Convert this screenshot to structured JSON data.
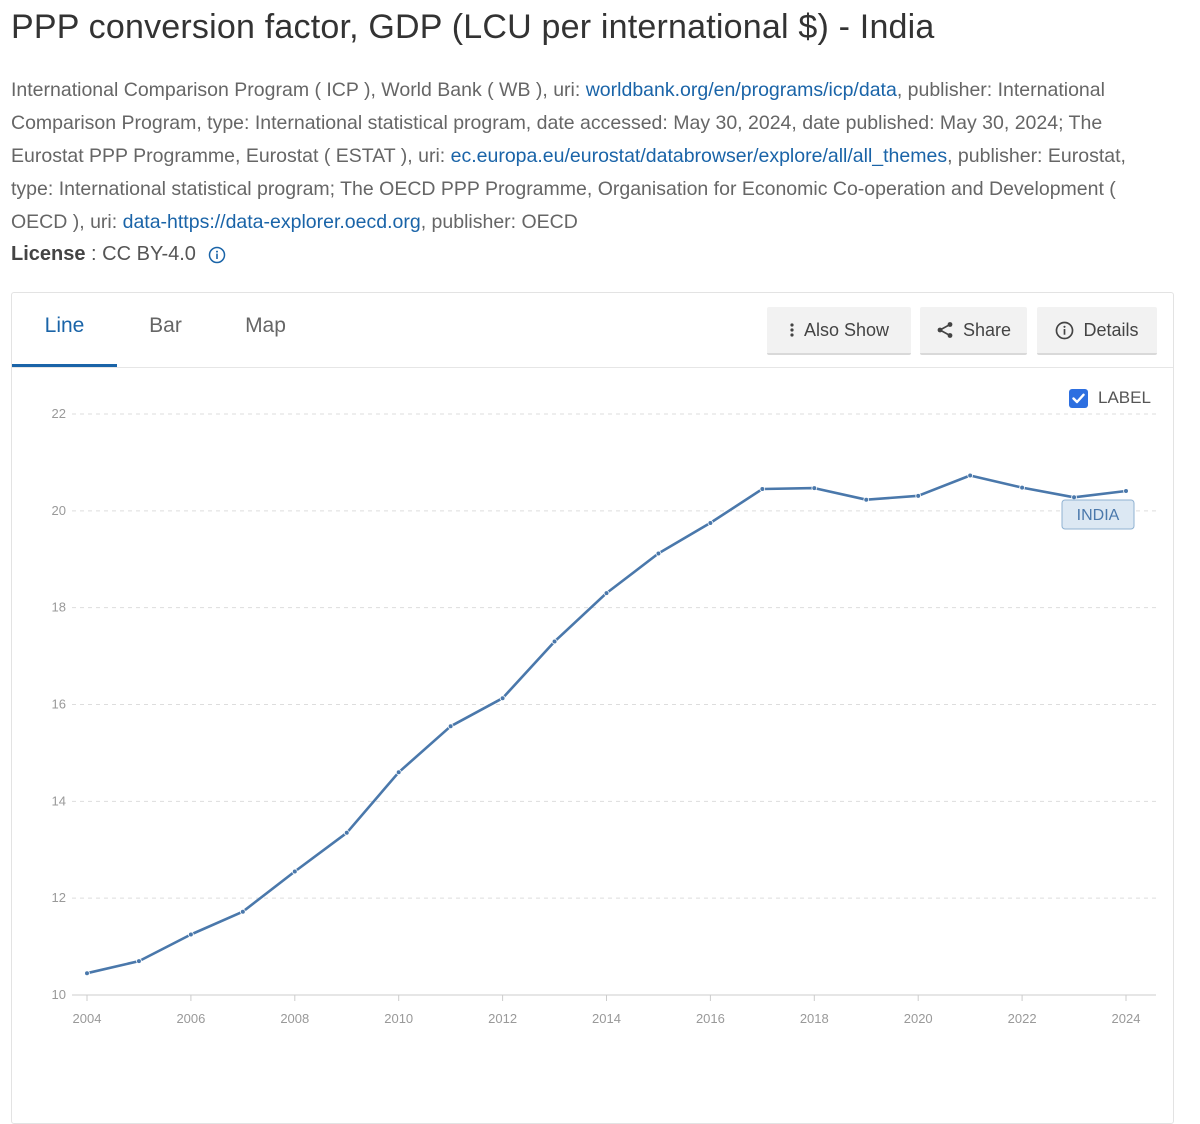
{
  "title": "PPP conversion factor, GDP (LCU per international $) - India",
  "source": {
    "part1": "International Comparison Program ( ICP ), World Bank ( WB ), uri: ",
    "link1": "worldbank.org/en/programs/icp/data",
    "part2": ", publisher: International Comparison Program, type: International statistical program, date accessed: May 30, 2024, date published: May 30, 2024; The Eurostat PPP Programme, Eurostat ( ESTAT ), uri: ",
    "link2": "ec.europa.eu/eurostat/databrowser/explore/all/all_themes",
    "part3": ", publisher: Eurostat, type: International statistical program; The OECD PPP Programme, Organisation for Economic Co-operation and Development ( OECD ), uri: ",
    "link3": "data-https://data-explorer.oecd.org",
    "part4": ", publisher: OECD"
  },
  "license": {
    "label": "License",
    "value": ": CC BY-4.0"
  },
  "tabs": [
    {
      "label": "Line",
      "active": true
    },
    {
      "label": "Bar",
      "active": false
    },
    {
      "label": "Map",
      "active": false
    }
  ],
  "toolbar": {
    "also_show": "Also Show",
    "share": "Share",
    "details": "Details"
  },
  "label_toggle": {
    "text": "LABEL",
    "checked": true
  },
  "colors": {
    "line": "#4a78ab",
    "accent": "#1a64a8",
    "grid": "#dddddd"
  },
  "chart_data": {
    "type": "line",
    "series": [
      {
        "name": "INDIA",
        "x": [
          2004,
          2005,
          2006,
          2007,
          2008,
          2009,
          2010,
          2011,
          2012,
          2013,
          2014,
          2015,
          2016,
          2017,
          2018,
          2019,
          2020,
          2021,
          2022,
          2023,
          2024
        ],
        "values": [
          10.45,
          10.7,
          11.25,
          11.72,
          12.55,
          13.35,
          14.6,
          15.55,
          16.13,
          17.3,
          18.3,
          19.12,
          19.75,
          20.45,
          20.47,
          20.23,
          20.31,
          20.73,
          20.48,
          20.28,
          20.41
        ]
      }
    ],
    "x_ticks": [
      "2004",
      "2006",
      "2008",
      "2010",
      "2012",
      "2014",
      "2016",
      "2018",
      "2020",
      "2022",
      "2024"
    ],
    "y_ticks": [
      "10",
      "12",
      "14",
      "16",
      "18",
      "20",
      "22"
    ],
    "xlim": [
      2004,
      2024
    ],
    "ylim": [
      10,
      22
    ],
    "grid": true,
    "series_label": "INDIA"
  }
}
